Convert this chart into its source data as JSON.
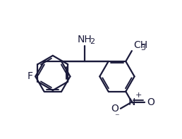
{
  "background_color": "#ffffff",
  "line_color": "#1a1a3a",
  "line_width": 1.6,
  "font_size": 10,
  "figsize": [
    2.58,
    1.97
  ],
  "dpi": 100,
  "xlim": [
    0,
    10
  ],
  "ylim": [
    0,
    8
  ]
}
